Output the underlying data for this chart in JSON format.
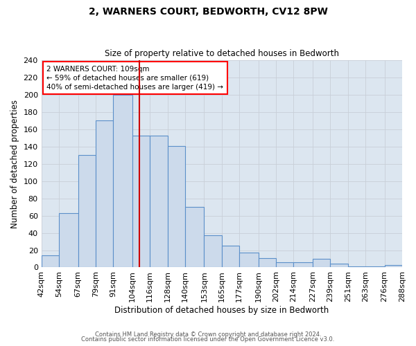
{
  "title": "2, WARNERS COURT, BEDWORTH, CV12 8PW",
  "subtitle": "Size of property relative to detached houses in Bedworth",
  "xlabel": "Distribution of detached houses by size in Bedworth",
  "ylabel": "Number of detached properties",
  "bin_edges": [
    42,
    54,
    67,
    79,
    91,
    104,
    116,
    128,
    140,
    153,
    165,
    177,
    190,
    202,
    214,
    227,
    239,
    251,
    263,
    276,
    288
  ],
  "bar_heights": [
    14,
    63,
    130,
    170,
    200,
    153,
    153,
    141,
    70,
    37,
    25,
    17,
    11,
    6,
    6,
    10,
    4,
    1,
    1,
    3
  ],
  "tick_labels": [
    "42sqm",
    "54sqm",
    "67sqm",
    "79sqm",
    "91sqm",
    "104sqm",
    "116sqm",
    "128sqm",
    "140sqm",
    "153sqm",
    "165sqm",
    "177sqm",
    "190sqm",
    "202sqm",
    "214sqm",
    "227sqm",
    "239sqm",
    "251sqm",
    "263sqm",
    "276sqm",
    "288sqm"
  ],
  "property_line_x": 109,
  "ylim": [
    0,
    240
  ],
  "yticks": [
    0,
    20,
    40,
    60,
    80,
    100,
    120,
    140,
    160,
    180,
    200,
    220,
    240
  ],
  "bar_face_color": "#ccdaeb",
  "bar_edge_color": "#5b8fc9",
  "line_color": "#cc0000",
  "grid_color": "#c8cfd8",
  "background_color": "#dce6f0",
  "annotation_line1": "2 WARNERS COURT: 109sqm",
  "annotation_line2": "← 59% of detached houses are smaller (619)",
  "annotation_line3": "40% of semi-detached houses are larger (419) →",
  "footer1": "Contains HM Land Registry data © Crown copyright and database right 2024.",
  "footer2": "Contains public sector information licensed under the Open Government Licence v3.0."
}
